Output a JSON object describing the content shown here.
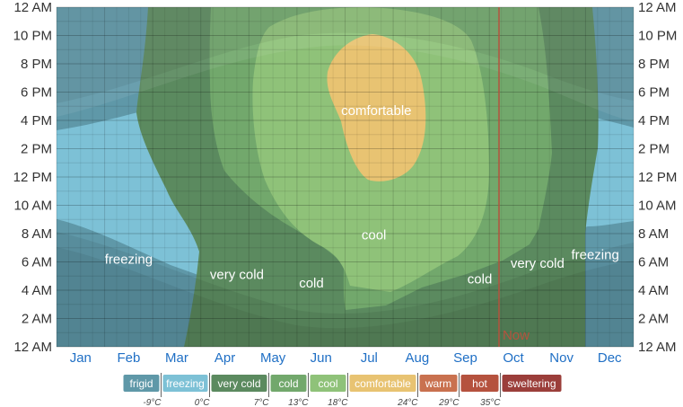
{
  "chart_data": {
    "type": "heatmap",
    "x_categories": [
      "Jan",
      "Feb",
      "Mar",
      "Apr",
      "May",
      "Jun",
      "Jul",
      "Aug",
      "Sep",
      "Oct",
      "Nov",
      "Dec"
    ],
    "y_ticks": [
      "12 AM",
      "2 AM",
      "4 AM",
      "6 AM",
      "8 AM",
      "10 AM",
      "12 PM",
      "2 PM",
      "4 PM",
      "6 PM",
      "8 PM",
      "10 PM",
      "12 AM"
    ],
    "y_range_hours": [
      0,
      24
    ],
    "grid": true,
    "now": {
      "label": "Now",
      "month_position": 10.2
    },
    "bands": [
      {
        "name": "frigid",
        "color": "#5f98a8",
        "max_temp": "-9°C"
      },
      {
        "name": "freezing",
        "color": "#7dc1d6",
        "max_temp": "0°C"
      },
      {
        "name": "very cold",
        "color": "#5b8a5f",
        "max_temp": "7°C"
      },
      {
        "name": "cold",
        "color": "#72a86c",
        "max_temp": "13°C"
      },
      {
        "name": "cool",
        "color": "#8fc279",
        "max_temp": "18°C"
      },
      {
        "name": "comfortable",
        "color": "#e8c372",
        "max_temp": "24°C"
      },
      {
        "name": "warm",
        "color": "#c9714f",
        "max_temp": "29°C"
      },
      {
        "name": "hot",
        "color": "#b5523e",
        "max_temp": "35°C"
      },
      {
        "name": "sweltering",
        "color": "#9b3e3a",
        "max_temp": ""
      }
    ],
    "region_labels": [
      {
        "text": "comfortable",
        "month": 7.15,
        "hour": 16.7
      },
      {
        "text": "cool",
        "month": 7.1,
        "hour": 7.9
      },
      {
        "text": "freezing",
        "month": 2.0,
        "hour": 6.2
      },
      {
        "text": "very cold",
        "month": 4.25,
        "hour": 5.1
      },
      {
        "text": "cold",
        "month": 5.8,
        "hour": 4.5
      },
      {
        "text": "cold",
        "month": 9.3,
        "hour": 4.8
      },
      {
        "text": "very cold",
        "month": 10.5,
        "hour": 5.9
      },
      {
        "text": "freezing",
        "month": 11.7,
        "hour": 6.5
      }
    ]
  }
}
